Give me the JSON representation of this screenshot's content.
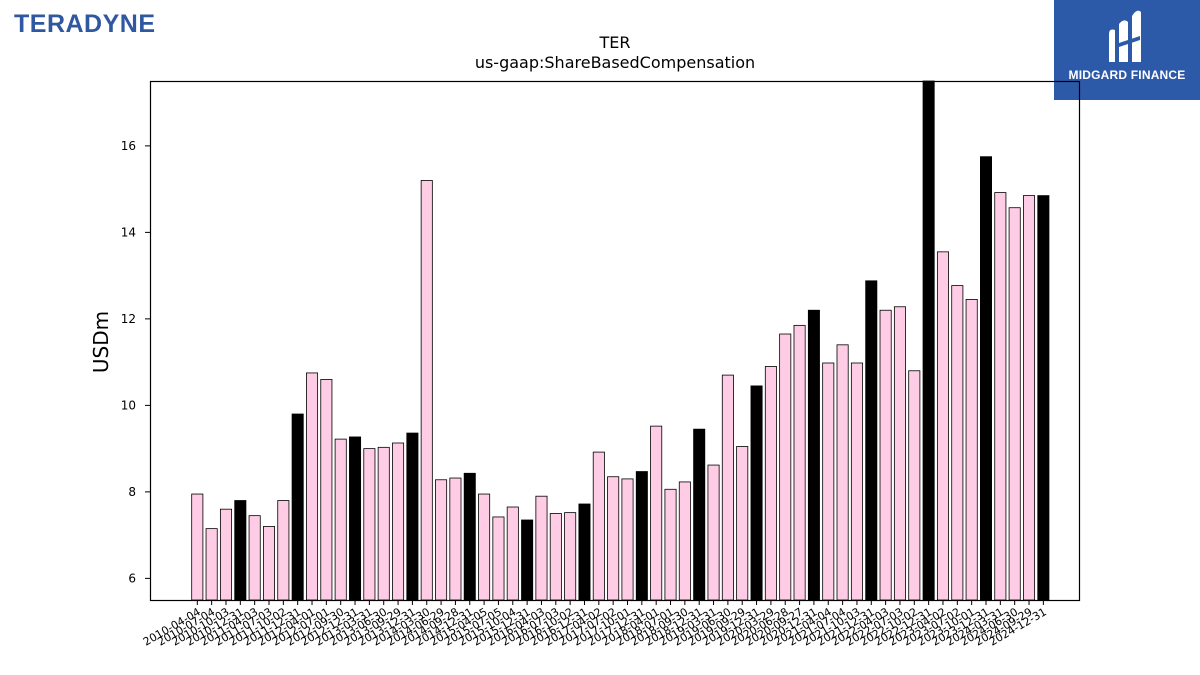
{
  "header": {
    "company_logo_text": "TERADYNE",
    "brand_text": "MIDGARD FINANCE"
  },
  "colors": {
    "bar_normal": "#ffcce6",
    "bar_highlight": "#000000",
    "bar_edge": "#000000",
    "brand_background": "#2d5aa8",
    "company_logo": "#2f58a0"
  },
  "chart_data": {
    "type": "bar",
    "title": "TER",
    "subtitle": "us-gaap:ShareBasedCompensation",
    "xlabel": "",
    "ylabel": "USDm",
    "ylim": [
      5.5,
      17.5
    ],
    "yticks": [
      6,
      8,
      10,
      12,
      14,
      16
    ],
    "grid": false,
    "highlight_rule": "fiscal year-end quarters shown in black",
    "categories": [
      "2010-04-04",
      "2010-07-04",
      "2010-10-03",
      "2010-12-31",
      "2011-04-03",
      "2011-07-03",
      "2011-10-02",
      "2011-12-31",
      "2012-04-01",
      "2012-07-01",
      "2012-09-30",
      "2012-12-31",
      "2013-03-31",
      "2013-06-30",
      "2013-09-29",
      "2013-12-31",
      "2014-03-30",
      "2014-06-29",
      "2014-09-28",
      "2014-12-31",
      "2015-04-05",
      "2015-07-05",
      "2015-10-04",
      "2015-12-31",
      "2016-04-03",
      "2016-07-03",
      "2016-10-02",
      "2016-12-31",
      "2017-04-02",
      "2017-07-02",
      "2017-10-01",
      "2017-12-31",
      "2018-04-01",
      "2018-07-01",
      "2018-09-30",
      "2018-12-31",
      "2019-03-31",
      "2019-06-30",
      "2019-09-29",
      "2019-12-31",
      "2020-03-29",
      "2020-06-28",
      "2020-09-27",
      "2020-12-31",
      "2021-04-04",
      "2021-07-04",
      "2021-10-03",
      "2021-12-31",
      "2022-04-03",
      "2022-07-03",
      "2022-10-02",
      "2022-12-31",
      "2023-04-02",
      "2023-07-02",
      "2023-10-01",
      "2023-12-31",
      "2024-03-31",
      "2024-06-30",
      "2024-09-29",
      "2024-12-31"
    ],
    "values": [
      7.95,
      7.15,
      7.6,
      7.8,
      7.45,
      7.2,
      7.8,
      9.8,
      10.75,
      10.6,
      9.22,
      9.27,
      9.0,
      9.03,
      9.13,
      9.36,
      15.2,
      8.28,
      8.32,
      8.43,
      7.95,
      7.42,
      7.65,
      7.35,
      7.9,
      7.5,
      7.52,
      7.72,
      8.92,
      8.35,
      8.3,
      8.47,
      9.52,
      8.06,
      8.23,
      9.45,
      8.62,
      10.7,
      9.05,
      10.45,
      10.9,
      11.65,
      11.85,
      12.2,
      10.98,
      11.4,
      10.98,
      12.88,
      12.2,
      12.28,
      10.8,
      17.5,
      13.55,
      12.77,
      12.45,
      15.75,
      14.92,
      14.57,
      14.85,
      14.85
    ],
    "highlighted": [
      3,
      7,
      11,
      15,
      19,
      23,
      27,
      31,
      35,
      39,
      43,
      47,
      51,
      55,
      59
    ]
  }
}
